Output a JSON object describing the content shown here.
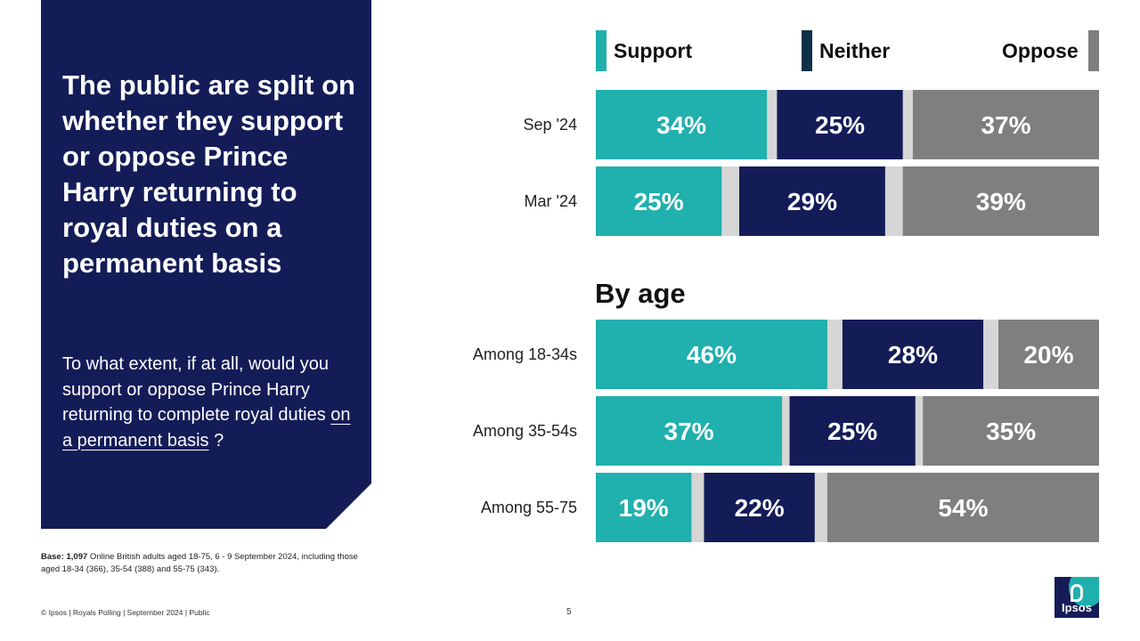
{
  "headline": "The public are split on whether they support or oppose Prince Harry returning to royal duties on a permanent basis",
  "question": {
    "text_before": "To what extent, if at all, would you support or oppose Prince Harry returning to complete royal duties ",
    "underlined": "on a permanent basis",
    "text_after": " ?"
  },
  "base_note": {
    "bold": "Base: 1,097",
    "text": " Online British adults aged 18-75, 6 - 9 September 2024, including those aged 18-34 (366), 35-54 (388) and 55-75 (343)."
  },
  "footer": {
    "left": "© Ipsos | Royals Polling | September 2024 | Public",
    "page": "5"
  },
  "logo": {
    "text": "Ipsos"
  },
  "legend": {
    "support": "Support",
    "neither": "Neither",
    "oppose": "Oppose"
  },
  "section_title": "By age",
  "colors": {
    "support": "#20b0ae",
    "neither": "#141c58",
    "oppose": "#7f7f7f",
    "gap": "#d6d6d6",
    "panel": "#141c58"
  },
  "chart_data": [
    {
      "type": "bar",
      "orientation": "horizontal",
      "stacked": true,
      "title": "",
      "categories": [
        "Sep '24",
        "Mar '24"
      ],
      "series": [
        {
          "name": "Support",
          "values": [
            34,
            25
          ]
        },
        {
          "name": "Neither",
          "values": [
            25,
            29
          ]
        },
        {
          "name": "Oppose",
          "values": [
            37,
            39
          ]
        }
      ],
      "unit": "%",
      "xlim": [
        0,
        100
      ]
    },
    {
      "type": "bar",
      "orientation": "horizontal",
      "stacked": true,
      "title": "By age",
      "categories": [
        "Among 18-34s",
        "Among 35-54s",
        "Among 55-75"
      ],
      "series": [
        {
          "name": "Support",
          "values": [
            46,
            37,
            19
          ]
        },
        {
          "name": "Neither",
          "values": [
            28,
            25,
            22
          ]
        },
        {
          "name": "Oppose",
          "values": [
            20,
            35,
            54
          ]
        }
      ],
      "unit": "%",
      "xlim": [
        0,
        100
      ]
    }
  ]
}
